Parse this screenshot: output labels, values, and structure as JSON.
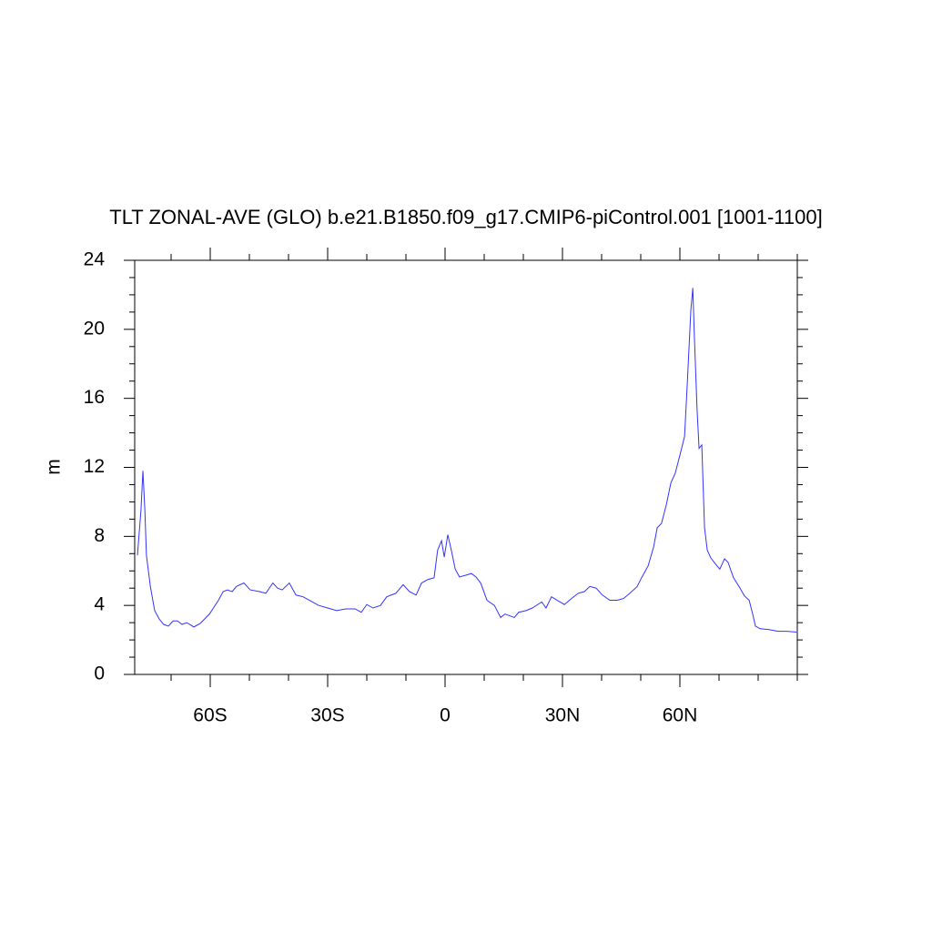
{
  "chart_data": {
    "type": "line",
    "title": "TLT ZONAL-AVE (GLO) b.e21.B1850.f09_g17.CMIP6-piControl.001 [1001-1100]",
    "ylabel": "m",
    "x": [
      -78.6,
      -77.7,
      -77.2,
      -76.7,
      -76.3,
      -75.3,
      -74.2,
      -73,
      -71.9,
      -70.7,
      -69.5,
      -68.4,
      -67.2,
      -66,
      -64.9,
      -64.2,
      -62.6,
      -60.2,
      -57.9,
      -56.7,
      -55.6,
      -54.4,
      -53.3,
      -51.4,
      -49.8,
      -47.4,
      -45.8,
      -44,
      -42.8,
      -41.6,
      -39.8,
      -38.1,
      -36.3,
      -34.7,
      -32.3,
      -30,
      -27.7,
      -25.3,
      -23,
      -21.4,
      -20,
      -18.4,
      -16.5,
      -14.9,
      -12.6,
      -10.7,
      -9.1,
      -7.4,
      -6,
      -4.4,
      -2.8,
      -1.9,
      -0.9,
      -0.2,
      0.7,
      1.6,
      2.6,
      3.7,
      5.3,
      6.7,
      7.9,
      9.1,
      10.7,
      12.6,
      14.2,
      15.3,
      16.5,
      17.7,
      18.8,
      20.7,
      22.3,
      24.7,
      25.8,
      27.2,
      28.6,
      30.5,
      32.3,
      34,
      35.6,
      37,
      38.6,
      40.2,
      42.1,
      44,
      45.6,
      47.2,
      49.1,
      50.2,
      51.9,
      53.3,
      54.2,
      55.3,
      56.5,
      57.7,
      58.8,
      60,
      61.2,
      61.9,
      62.8,
      63.3,
      63.7,
      64.4,
      64.9,
      65.6,
      66.3,
      67,
      67.9,
      69.1,
      70.2,
      71.4,
      72.3,
      73.7,
      75.1,
      76.5,
      77.7,
      78.6,
      79.3,
      80.5,
      82.8,
      85.1,
      87.4,
      89.8
    ],
    "series": [
      {
        "name": "TLT",
        "color": "#3333ff",
        "values": [
          6.9,
          9.5,
          11.8,
          9.5,
          6.9,
          5.1,
          3.7,
          3.2,
          2.9,
          2.8,
          3.1,
          3.1,
          2.9,
          3.0,
          2.85,
          2.75,
          2.95,
          3.5,
          4.3,
          4.8,
          4.9,
          4.8,
          5.1,
          5.3,
          4.9,
          4.8,
          4.7,
          5.3,
          5.0,
          4.9,
          5.3,
          4.6,
          4.5,
          4.3,
          4.0,
          3.85,
          3.7,
          3.8,
          3.8,
          3.6,
          4.05,
          3.85,
          4.0,
          4.5,
          4.7,
          5.2,
          4.8,
          4.6,
          5.3,
          5.5,
          5.6,
          7.2,
          7.75,
          6.8,
          8.1,
          7.2,
          6.1,
          5.65,
          5.75,
          5.85,
          5.65,
          5.3,
          4.3,
          4.0,
          3.3,
          3.5,
          3.4,
          3.3,
          3.6,
          3.7,
          3.85,
          4.2,
          3.85,
          4.5,
          4.3,
          4.05,
          4.4,
          4.7,
          4.8,
          5.1,
          5.0,
          4.6,
          4.3,
          4.3,
          4.4,
          4.7,
          5.1,
          5.6,
          6.3,
          7.4,
          8.5,
          8.75,
          9.8,
          11.1,
          11.65,
          12.7,
          13.8,
          16.9,
          21.1,
          22.4,
          19.6,
          15.3,
          13.1,
          13.3,
          8.5,
          7.2,
          6.75,
          6.4,
          6.1,
          6.7,
          6.5,
          5.6,
          5.1,
          4.55,
          4.3,
          3.5,
          2.8,
          2.65,
          2.6,
          2.5,
          2.5,
          2.45
        ]
      }
    ],
    "xlim": [
      -79.3,
      90
    ],
    "xticks": [
      {
        "value": -60,
        "label": "60S"
      },
      {
        "value": -30,
        "label": "30S"
      },
      0,
      {
        "value": 30,
        "label": "30N"
      },
      {
        "value": 60,
        "label": "60N"
      }
    ],
    "xminorticks": [
      -70,
      -50,
      -40,
      -20,
      -10,
      10,
      20,
      40,
      50,
      70,
      80,
      90
    ],
    "ylim": [
      0,
      24
    ],
    "yticks": [
      0,
      4,
      8,
      12,
      16,
      20,
      24
    ],
    "yminorticks": [
      1,
      2,
      3,
      5,
      6,
      7,
      9,
      10,
      11,
      13,
      14,
      15,
      17,
      18,
      19,
      21,
      22,
      23
    ]
  }
}
